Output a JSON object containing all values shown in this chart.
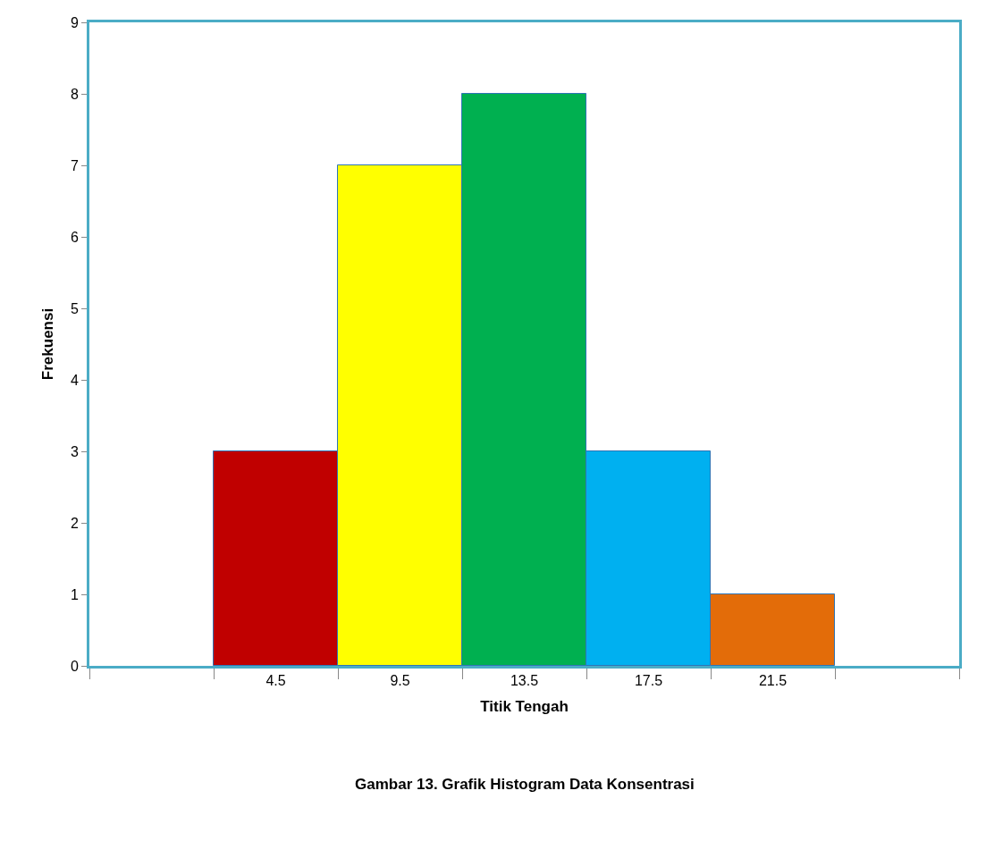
{
  "chart_data": {
    "type": "bar",
    "categories": [
      null,
      "4.5",
      "9.5",
      "13.5",
      "17.5",
      "21.5",
      null
    ],
    "values": [
      null,
      3,
      7,
      8,
      3,
      1,
      null
    ],
    "colors": [
      "#c00000",
      "#c00000",
      "#ffff00",
      "#00b050",
      "#00b0f0",
      "#e36c09",
      "#e36c09"
    ],
    "xlabel": "Titik Tengah",
    "ylabel": "Frekuensi",
    "annotations": [
      "Gambar 13. Grafik Histogram Data Konsentrasi"
    ],
    "ylim": [
      0,
      9
    ],
    "yticks": [
      0,
      1,
      2,
      3,
      4,
      5,
      6,
      7,
      8,
      9
    ]
  }
}
